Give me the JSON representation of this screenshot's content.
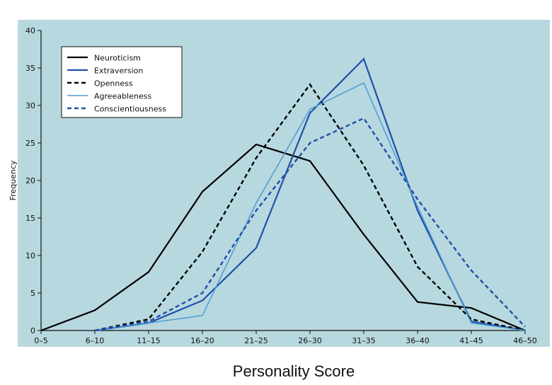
{
  "chart_data": {
    "type": "line",
    "title": "",
    "xlabel": "Personality Score",
    "ylabel": "Frequency",
    "categories": [
      "0–5",
      "6–10",
      "11–15",
      "16–20",
      "21–25",
      "26–30",
      "31–35",
      "36–40",
      "41–45",
      "46–50"
    ],
    "ylim": [
      0,
      40
    ],
    "yticks": [
      0,
      5,
      10,
      15,
      20,
      25,
      30,
      35,
      40
    ],
    "grid": false,
    "legend_position": "top-left",
    "background_color": "#b8d8df",
    "series": [
      {
        "name": "Neuroticism",
        "color": "#000000",
        "dash": "solid",
        "values": [
          0,
          2.7,
          7.8,
          18.5,
          24.8,
          22.6,
          12.8,
          3.8,
          3,
          0
        ]
      },
      {
        "name": "Extraversion",
        "color": "#1f4fa8",
        "dash": "solid",
        "values": [
          null,
          0,
          1,
          4,
          11,
          29,
          36.2,
          16,
          1.2,
          0
        ]
      },
      {
        "name": "Openness",
        "color": "#000000",
        "dash": "dashed",
        "values": [
          null,
          0,
          1.5,
          10.5,
          23,
          32.8,
          22,
          8.5,
          1.5,
          0
        ]
      },
      {
        "name": "Agreeableness",
        "color": "#4f9fd4",
        "dash": "solid-thin",
        "values": [
          null,
          0,
          1,
          2,
          17,
          29.5,
          33,
          16.5,
          1,
          0
        ]
      },
      {
        "name": "Conscientiousness",
        "color": "#1f4fa8",
        "dash": "dashed",
        "values": [
          null,
          0,
          1.2,
          5,
          16,
          25,
          28.3,
          17.5,
          8,
          0.5
        ]
      }
    ]
  }
}
